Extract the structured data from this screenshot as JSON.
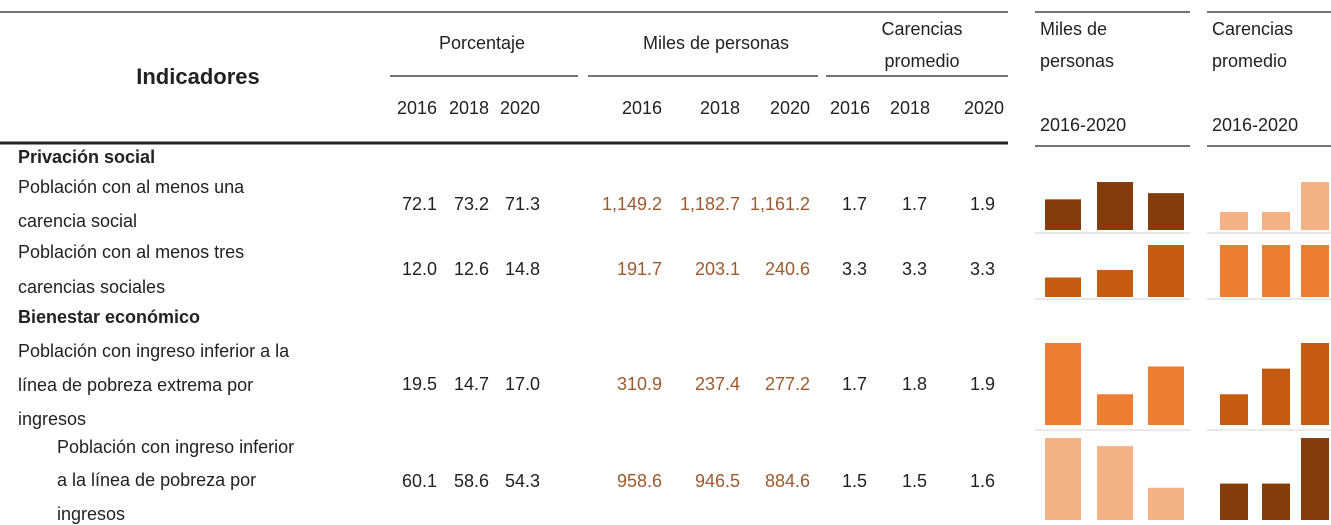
{
  "header": {
    "title": "Indicadores",
    "porcentaje": "Porcentaje",
    "miles": "Miles de personas",
    "carencias": [
      "Carencias",
      "promedio"
    ],
    "years": [
      "2016",
      "2018",
      "2020"
    ],
    "spark_headers": [
      {
        "lines": [
          "Miles de",
          "personas"
        ],
        "period": "2016-2020"
      },
      {
        "lines": [
          "Carencias",
          "promedio"
        ],
        "period": "2016-2020"
      }
    ]
  },
  "sections": [
    {
      "title": "Privación social",
      "rows": [
        {
          "label_lines": [
            "Población con al menos una",
            "carencia social"
          ],
          "porcentaje": [
            "72.1",
            "73.2",
            "71.3"
          ],
          "miles": [
            "1,149.2",
            "1,182.7",
            "1,161.2"
          ],
          "carencias": [
            "1.7",
            "1.7",
            "1.9"
          ],
          "miles_colors": [
            "#843c0c",
            "#843c0c",
            "#843c0c"
          ],
          "carencias_colors": [
            "#f4b183",
            "#f4b183",
            "#f4b183"
          ]
        },
        {
          "label_lines": [
            "Población con al menos tres",
            "carencias sociales"
          ],
          "porcentaje": [
            "12.0",
            "12.6",
            "14.8"
          ],
          "miles": [
            "191.7",
            "203.1",
            "240.6"
          ],
          "carencias": [
            "3.3",
            "3.3",
            "3.3"
          ],
          "miles_colors": [
            "#c55a11",
            "#c55a11",
            "#c55a11"
          ],
          "carencias_colors": [
            "#ed7d31",
            "#ed7d31",
            "#ed7d31"
          ]
        }
      ]
    },
    {
      "title": "Bienestar económico",
      "rows": [
        {
          "label_lines": [
            "Población con ingreso inferior a la",
            "línea de pobreza extrema por",
            "ingresos"
          ],
          "porcentaje": [
            "19.5",
            "14.7",
            "17.0"
          ],
          "miles": [
            "310.9",
            "237.4",
            "277.2"
          ],
          "carencias": [
            "1.7",
            "1.8",
            "1.9"
          ],
          "miles_colors": [
            "#ed7d31",
            "#ed7d31",
            "#ed7d31"
          ],
          "carencias_colors": [
            "#c55a11",
            "#c55a11",
            "#c55a11"
          ]
        },
        {
          "label_lines": [
            "Población con ingreso inferior",
            "a la línea de pobreza por",
            "ingresos"
          ],
          "porcentaje": [
            "60.1",
            "58.6",
            "54.3"
          ],
          "miles": [
            "958.6",
            "946.5",
            "884.6"
          ],
          "carencias": [
            "1.5",
            "1.5",
            "1.6"
          ],
          "miles_colors": [
            "#f4b183",
            "#f4b183",
            "#f4b183"
          ],
          "carencias_colors": [
            "#843c0c",
            "#843c0c",
            "#843c0c"
          ]
        }
      ]
    }
  ]
}
